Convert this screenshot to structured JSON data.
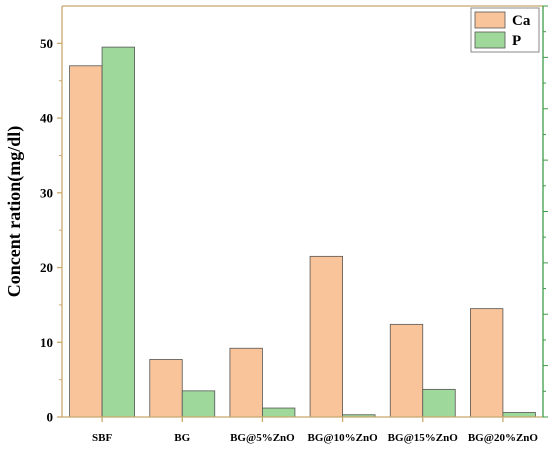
{
  "chart_data": {
    "type": "bar",
    "categories": [
      "SBF",
      "BG",
      "BG@5%ZnO",
      "BG@10%ZnO",
      "BG@15%ZnO",
      "BG@20%ZnO"
    ],
    "series": [
      {
        "name": "Ca",
        "values": [
          47.0,
          7.7,
          9.2,
          21.5,
          12.4,
          14.5
        ],
        "color": "#f9c49a"
      },
      {
        "name": "P",
        "values": [
          49.5,
          3.5,
          1.2,
          0.3,
          3.7,
          0.6
        ],
        "color": "#9ed89a"
      }
    ],
    "ylabel": "Concent ration(mg/dl)",
    "ylim": [
      0,
      55
    ],
    "yticks": [
      0,
      10,
      20,
      30,
      40,
      50
    ],
    "grid": false,
    "legend_position": "top-right",
    "axis_color": "#c8a96e",
    "right_axis_color": "#3f9c47"
  }
}
